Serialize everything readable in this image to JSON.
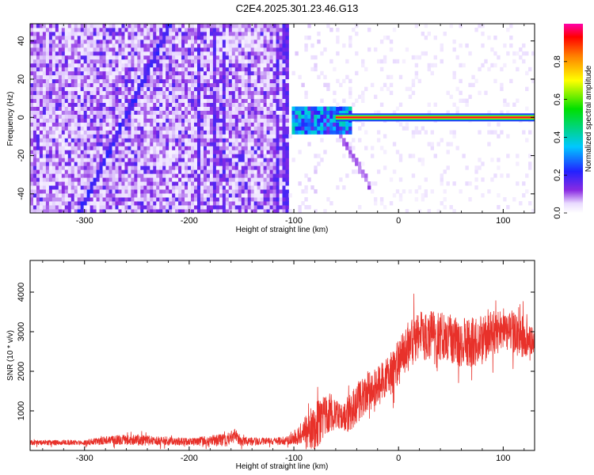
{
  "title": "C2E4.2025.301.23.46.G13",
  "chart_data": [
    {
      "type": "heatmap",
      "title": "C2E4.2025.301.23.46.G13",
      "xlabel": "Height of straight line (km)",
      "ylabel": "Frequency (Hz)",
      "xlim": [
        -352,
        130
      ],
      "ylim": [
        -50,
        49
      ],
      "xticks": [
        -300,
        -200,
        -100,
        0,
        100
      ],
      "yticks": [
        -40,
        -20,
        0,
        20,
        40
      ],
      "tick_labels_x": [
        "-300",
        "-200",
        "-100",
        "0",
        "100"
      ],
      "tick_labels_y": [
        "-40",
        "-20",
        "0",
        "20",
        "40"
      ],
      "colorbar": {
        "label": "Normalized spectral amplitude",
        "range": [
          0,
          1
        ],
        "ticks": [
          0.0,
          0.2,
          0.4,
          0.6,
          0.8
        ],
        "tick_labels": [
          "0.0",
          "0.2",
          "0.4",
          "0.6",
          "0.8"
        ],
        "colormap": "rainbow (white-lavender-purple-blue-cyan-green-yellow-orange-red-magenta)"
      },
      "features": {
        "noise_region_x": [
          -352,
          -105
        ],
        "blank_gap_x": [
          -100,
          -62
        ],
        "diagonal_streak": [
          {
            "x": -305,
            "y": -50
          },
          {
            "x": -218,
            "y": 49
          }
        ],
        "vertical_lines_x": [
          -190,
          -175,
          -168,
          -115,
          -108
        ],
        "carrier_line": {
          "y": 0,
          "x_start": -60,
          "x_end": 130,
          "peak_amplitude": 0.95
        },
        "onset_blob": {
          "x": [
            -102,
            -45
          ],
          "y": [
            -8,
            6
          ],
          "amplitude": 0.35
        },
        "descending_branch": [
          {
            "x": -60,
            "y": -5
          },
          {
            "x": -28,
            "y": -35
          }
        ]
      }
    },
    {
      "type": "line",
      "xlabel": "Height of straight line (km)",
      "ylabel": "SNR (10 * v/v)",
      "xlim": [
        -352,
        130
      ],
      "ylim": [
        0,
        4800
      ],
      "xticks": [
        -300,
        -200,
        -100,
        0,
        100
      ],
      "yticks": [
        1000,
        2000,
        3000,
        4000
      ],
      "tick_labels_x": [
        "-300",
        "-200",
        "-100",
        "0",
        "100"
      ],
      "tick_labels_y": [
        "1000",
        "2000",
        "3000",
        "4000"
      ],
      "color": "#e8312a",
      "series_profile": {
        "x": [
          -352,
          -300,
          -270,
          -250,
          -200,
          -165,
          -155,
          -150,
          -120,
          -105,
          -95,
          -80,
          -65,
          -55,
          -45,
          -30,
          -15,
          0,
          10,
          20,
          40,
          60,
          80,
          100,
          110,
          120,
          130
        ],
        "mean": [
          200,
          200,
          270,
          260,
          220,
          260,
          380,
          220,
          230,
          250,
          380,
          600,
          1000,
          800,
          1000,
          1500,
          1700,
          2200,
          2700,
          2900,
          2900,
          2700,
          2800,
          3100,
          3000,
          2800,
          2600
        ],
        "spread": [
          110,
          120,
          220,
          240,
          160,
          300,
          350,
          200,
          160,
          220,
          450,
          1100,
          900,
          650,
          900,
          900,
          950,
          1050,
          1200,
          1100,
          1200,
          1150,
          1150,
          900,
          1000,
          900,
          800
        ]
      }
    }
  ]
}
